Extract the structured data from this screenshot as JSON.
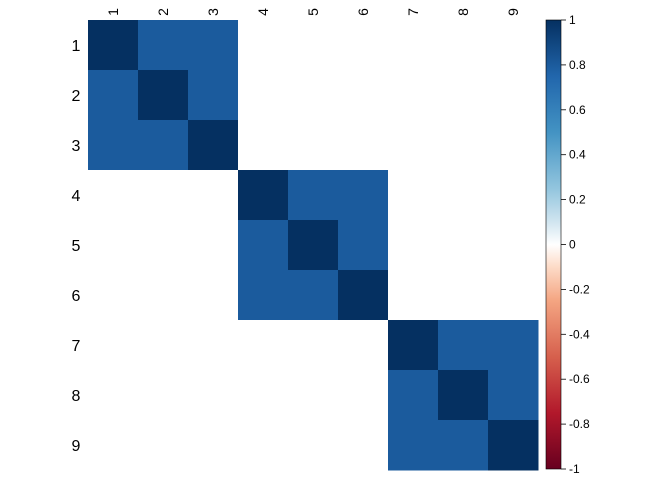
{
  "chart_data": {
    "type": "heatmap",
    "row_labels": [
      "1",
      "2",
      "3",
      "4",
      "5",
      "6",
      "7",
      "8",
      "9"
    ],
    "col_labels": [
      "1",
      "2",
      "3",
      "4",
      "5",
      "6",
      "7",
      "8",
      "9"
    ],
    "values": [
      [
        1.0,
        0.8,
        0.8,
        0.0,
        0.0,
        0.0,
        0.0,
        0.0,
        0.0
      ],
      [
        0.8,
        1.0,
        0.8,
        0.0,
        0.0,
        0.0,
        0.0,
        0.0,
        0.0
      ],
      [
        0.8,
        0.8,
        1.0,
        0.0,
        0.0,
        0.0,
        0.0,
        0.0,
        0.0
      ],
      [
        0.0,
        0.0,
        0.0,
        1.0,
        0.8,
        0.8,
        0.0,
        0.0,
        0.0
      ],
      [
        0.0,
        0.0,
        0.0,
        0.8,
        1.0,
        0.8,
        0.0,
        0.0,
        0.0
      ],
      [
        0.0,
        0.0,
        0.0,
        0.8,
        0.8,
        1.0,
        0.0,
        0.0,
        0.0
      ],
      [
        0.0,
        0.0,
        0.0,
        0.0,
        0.0,
        0.0,
        1.0,
        0.8,
        0.8
      ],
      [
        0.0,
        0.0,
        0.0,
        0.0,
        0.0,
        0.0,
        0.8,
        1.0,
        0.8
      ],
      [
        0.0,
        0.0,
        0.0,
        0.0,
        0.0,
        0.0,
        0.8,
        0.8,
        1.0
      ]
    ],
    "color_range": [
      -1,
      1
    ],
    "colorbar_ticks": [
      "1",
      "0.8",
      "0.6",
      "0.4",
      "0.2",
      "0",
      "-0.2",
      "-0.4",
      "-0.6",
      "-0.8",
      "-1"
    ],
    "colorbar_tick_values": [
      1,
      0.8,
      0.6,
      0.4,
      0.2,
      0,
      -0.2,
      -0.4,
      -0.6,
      -0.8,
      -1
    ],
    "color_stops": [
      {
        "value": -1.0,
        "color": "#67001F"
      },
      {
        "value": -0.75,
        "color": "#B2182B"
      },
      {
        "value": -0.5,
        "color": "#D6604D"
      },
      {
        "value": -0.25,
        "color": "#F4A582"
      },
      {
        "value": -0.1,
        "color": "#FDDBC7"
      },
      {
        "value": 0.0,
        "color": "#FFFFFF"
      },
      {
        "value": 0.1,
        "color": "#D1E5F0"
      },
      {
        "value": 0.25,
        "color": "#92C5DE"
      },
      {
        "value": 0.5,
        "color": "#4393C3"
      },
      {
        "value": 0.75,
        "color": "#2166AC"
      },
      {
        "value": 1.0,
        "color": "#053061"
      }
    ],
    "column_labels_position": "top",
    "row_labels_position": "left",
    "legend": "colorbar-right",
    "grid": false
  }
}
